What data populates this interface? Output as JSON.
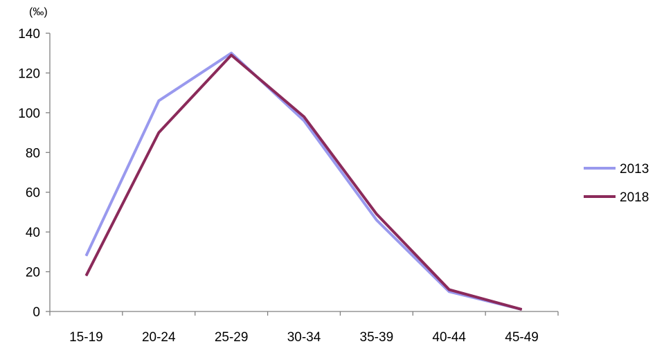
{
  "chart_data": {
    "type": "line",
    "unit_label": "(‰)",
    "categories": [
      "15-19",
      "20-24",
      "25-29",
      "30-34",
      "35-39",
      "40-44",
      "45-49"
    ],
    "ylim": [
      0,
      140
    ],
    "yticks": [
      0,
      20,
      40,
      60,
      80,
      100,
      120,
      140
    ],
    "grid": false,
    "legend_position": "right",
    "series": [
      {
        "name": "2013",
        "color": "#9999ee",
        "values": [
          28,
          106,
          130,
          96,
          46,
          10,
          1
        ]
      },
      {
        "name": "2018",
        "color": "#8b2a5a",
        "values": [
          18,
          90,
          129,
          98,
          49,
          11,
          1
        ]
      }
    ]
  }
}
